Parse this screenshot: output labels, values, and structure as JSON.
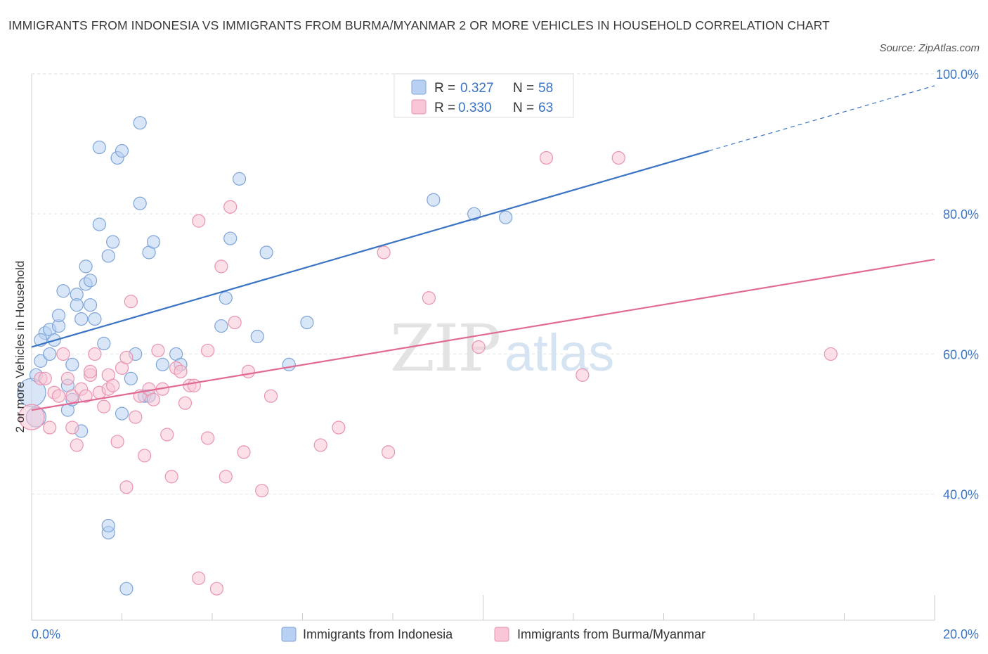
{
  "title": "IMMIGRANTS FROM INDONESIA VS IMMIGRANTS FROM BURMA/MYANMAR 2 OR MORE VEHICLES IN HOUSEHOLD CORRELATION CHART",
  "source": "Source: ZipAtlas.com",
  "watermark": {
    "zip": "ZIP",
    "atlas": "atlas"
  },
  "legend": {
    "r_label": "R =",
    "n_label": "N =",
    "rows": [
      {
        "r": "0.327",
        "n": "58"
      },
      {
        "r": "0.330",
        "n": "63"
      }
    ]
  },
  "colors": {
    "blue": "#3b74c4",
    "blue_fill": "#b8d1f3",
    "blue_stroke": "#7ea4d8",
    "pink": "#e06a94",
    "pink_fill": "#f8c6d6",
    "pink_stroke": "#e993b2"
  },
  "chart_data": {
    "type": "scatter",
    "title": "IMMIGRANTS FROM INDONESIA VS IMMIGRANTS FROM BURMA/MYANMAR 2 OR MORE VEHICLES IN HOUSEHOLD CORRELATION CHART",
    "xlabel": "",
    "ylabel": "2 or more Vehicles in Household",
    "xlim": [
      0,
      20
    ],
    "ylim": [
      22,
      102
    ],
    "x_tick_labels": [
      "0.0%",
      "20.0%"
    ],
    "y_ticks": [
      40,
      60,
      80,
      100
    ],
    "y_tick_labels": [
      "40.0%",
      "60.0%",
      "80.0%",
      "100.0%"
    ],
    "grid": true,
    "legend_placement": "top-center",
    "series": [
      {
        "name": "Immigrants from Indonesia",
        "color": "#3b74c4",
        "trend": {
          "x0": 0,
          "y0": 61.0,
          "x1": 15,
          "y1": 89.0,
          "dashed_to_x": 20,
          "dashed_to_y": 98.3
        },
        "points": [
          [
            0.0,
            54.5,
            20
          ],
          [
            0.1,
            51.0,
            14
          ],
          [
            0.2,
            59.0,
            9
          ],
          [
            0.1,
            57.0,
            9
          ],
          [
            0.3,
            63.0,
            9
          ],
          [
            0.4,
            63.5,
            9
          ],
          [
            0.5,
            62.0,
            9
          ],
          [
            0.2,
            62.0,
            9
          ],
          [
            0.6,
            64.0,
            9
          ],
          [
            0.4,
            60.0,
            9
          ],
          [
            0.6,
            65.5,
            9
          ],
          [
            0.7,
            69.0,
            9
          ],
          [
            0.8,
            52.0,
            9
          ],
          [
            0.9,
            53.5,
            9
          ],
          [
            0.8,
            55.5,
            9
          ],
          [
            0.9,
            58.5,
            9
          ],
          [
            1.0,
            68.5,
            9
          ],
          [
            1.0,
            67.0,
            9
          ],
          [
            1.1,
            49.0,
            9
          ],
          [
            1.1,
            65.0,
            9
          ],
          [
            1.2,
            70.0,
            9
          ],
          [
            1.2,
            72.5,
            9
          ],
          [
            1.3,
            70.5,
            9
          ],
          [
            1.3,
            67.0,
            9
          ],
          [
            1.4,
            65.0,
            9
          ],
          [
            1.5,
            89.5,
            9
          ],
          [
            1.5,
            78.5,
            9
          ],
          [
            1.6,
            61.5,
            9
          ],
          [
            1.7,
            34.5,
            9
          ],
          [
            1.7,
            35.5,
            9
          ],
          [
            1.7,
            74.0,
            9
          ],
          [
            1.8,
            76.0,
            9
          ],
          [
            1.9,
            88.0,
            9
          ],
          [
            2.0,
            89.0,
            9
          ],
          [
            2.0,
            51.5,
            9
          ],
          [
            2.1,
            26.5,
            9
          ],
          [
            2.2,
            56.5,
            9
          ],
          [
            2.3,
            60.0,
            9
          ],
          [
            2.4,
            81.5,
            9
          ],
          [
            2.4,
            93.0,
            9
          ],
          [
            2.5,
            54.0,
            9
          ],
          [
            2.6,
            74.5,
            9
          ],
          [
            2.7,
            76.0,
            9
          ],
          [
            2.9,
            58.5,
            9
          ],
          [
            3.2,
            60.0,
            9
          ],
          [
            3.3,
            58.5,
            9
          ],
          [
            4.2,
            64.0,
            9
          ],
          [
            4.3,
            68.0,
            9
          ],
          [
            4.4,
            76.5,
            9
          ],
          [
            4.6,
            85.0,
            9
          ],
          [
            5.0,
            62.5,
            9
          ],
          [
            5.2,
            74.5,
            9
          ],
          [
            5.7,
            58.5,
            9
          ],
          [
            6.1,
            64.5,
            9
          ],
          [
            8.9,
            82.0,
            9
          ],
          [
            9.8,
            80.0,
            9
          ],
          [
            10.5,
            79.5,
            9
          ],
          [
            2.6,
            54.0,
            9
          ]
        ]
      },
      {
        "name": "Immigrants from Burma/Myanmar",
        "color": "#e06a94",
        "trend": {
          "x0": 0,
          "y0": 52.0,
          "x1": 20,
          "y1": 73.5
        },
        "points": [
          [
            0.0,
            51.0,
            18
          ],
          [
            0.2,
            56.5,
            9
          ],
          [
            0.3,
            56.5,
            9
          ],
          [
            0.4,
            49.5,
            9
          ],
          [
            0.5,
            54.5,
            9
          ],
          [
            0.6,
            54.0,
            9
          ],
          [
            0.7,
            60.0,
            9
          ],
          [
            0.8,
            56.5,
            9
          ],
          [
            0.9,
            49.5,
            9
          ],
          [
            0.9,
            54.0,
            9
          ],
          [
            1.0,
            47.0,
            9
          ],
          [
            1.1,
            55.0,
            9
          ],
          [
            1.2,
            54.0,
            9
          ],
          [
            1.3,
            57.0,
            9
          ],
          [
            1.3,
            57.5,
            9
          ],
          [
            1.4,
            60.0,
            9
          ],
          [
            1.5,
            54.5,
            9
          ],
          [
            1.6,
            52.5,
            9
          ],
          [
            1.7,
            55.0,
            9
          ],
          [
            1.7,
            57.0,
            9
          ],
          [
            1.8,
            55.5,
            9
          ],
          [
            1.9,
            47.5,
            9
          ],
          [
            2.0,
            58.0,
            9
          ],
          [
            2.1,
            59.5,
            9
          ],
          [
            2.1,
            41.0,
            9
          ],
          [
            2.2,
            67.5,
            9
          ],
          [
            2.3,
            51.0,
            9
          ],
          [
            2.4,
            54.0,
            9
          ],
          [
            2.5,
            45.5,
            9
          ],
          [
            2.6,
            55.0,
            9
          ],
          [
            2.7,
            53.5,
            9
          ],
          [
            2.8,
            60.5,
            9
          ],
          [
            2.9,
            55.0,
            9
          ],
          [
            3.0,
            48.5,
            9
          ],
          [
            3.1,
            42.5,
            9
          ],
          [
            3.2,
            58.0,
            9
          ],
          [
            3.3,
            57.5,
            9
          ],
          [
            3.4,
            53.0,
            9
          ],
          [
            3.5,
            55.5,
            9
          ],
          [
            3.6,
            55.5,
            9
          ],
          [
            3.7,
            79.0,
            9
          ],
          [
            3.7,
            28.0,
            9
          ],
          [
            3.9,
            48.0,
            9
          ],
          [
            3.9,
            60.5,
            9
          ],
          [
            4.1,
            26.5,
            9
          ],
          [
            4.2,
            72.5,
            9
          ],
          [
            4.3,
            42.5,
            9
          ],
          [
            4.4,
            81.0,
            9
          ],
          [
            4.5,
            64.5,
            9
          ],
          [
            4.7,
            46.0,
            9
          ],
          [
            4.8,
            57.5,
            9
          ],
          [
            5.1,
            40.5,
            9
          ],
          [
            5.3,
            54.0,
            9
          ],
          [
            6.4,
            47.0,
            9
          ],
          [
            6.8,
            49.5,
            9
          ],
          [
            7.8,
            74.5,
            9
          ],
          [
            7.9,
            46.0,
            9
          ],
          [
            8.8,
            68.0,
            9
          ],
          [
            9.9,
            61.0,
            9
          ],
          [
            11.4,
            88.0,
            9
          ],
          [
            12.2,
            57.0,
            9
          ],
          [
            13.0,
            88.0,
            9
          ],
          [
            17.7,
            60.0,
            9
          ]
        ]
      }
    ]
  }
}
